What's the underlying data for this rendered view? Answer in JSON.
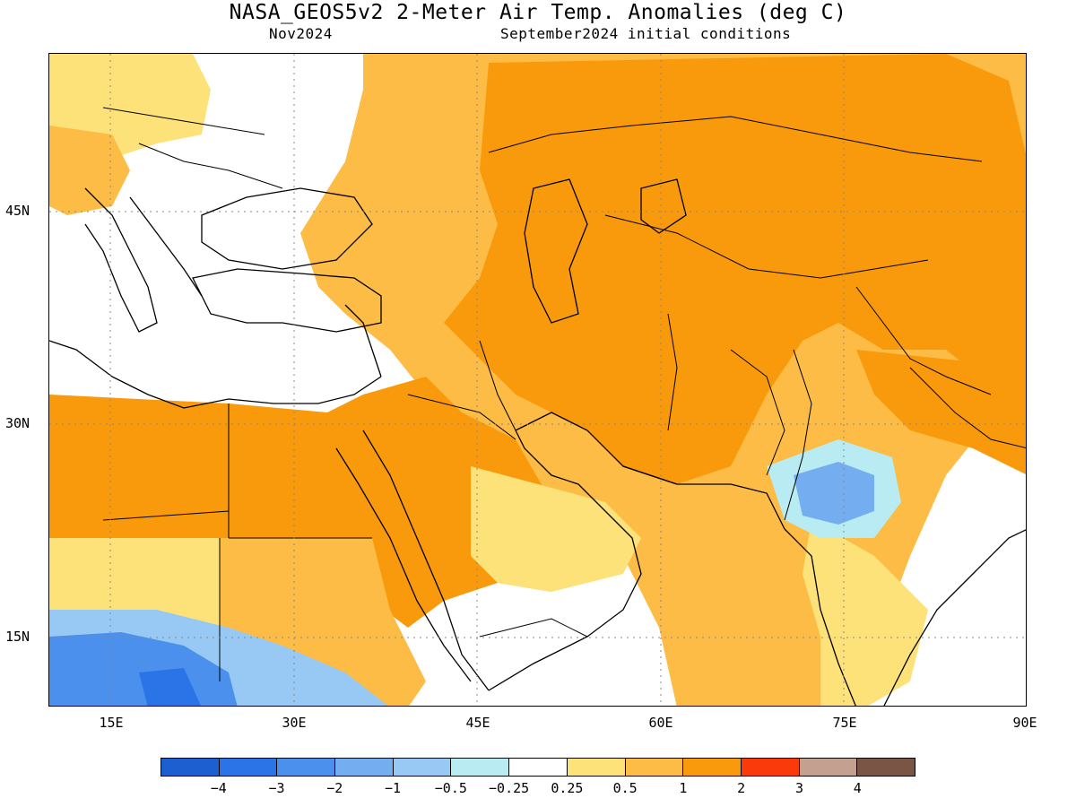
{
  "header": {
    "title": "NASA_GEOS5v2 2-Meter Air Temp. Anomalies (deg C)",
    "subtitle_left": "Nov2024",
    "subtitle_right": "September2024 initial conditions"
  },
  "map": {
    "projection": "equirectangular",
    "lon_range": [
      10,
      90
    ],
    "lat_range": [
      10,
      56
    ],
    "lat_ticks": [
      "45N",
      "30N",
      "15N"
    ],
    "lon_ticks": [
      "15E",
      "30E",
      "45E",
      "60E",
      "75E",
      "90E"
    ],
    "grid": "dotted"
  },
  "colorbar": {
    "colors": [
      "#1d5fd0",
      "#2b74e8",
      "#4a90ec",
      "#74aef0",
      "#98c8f4",
      "#b8ecf2",
      "#ffffff",
      "#fde27a",
      "#fcbc45",
      "#f99a0c",
      "#fa3a0a",
      "#c4a090",
      "#7a5444"
    ],
    "labels": [
      "−4",
      "−3",
      "−2",
      "−1",
      "−0.5",
      "−0.25",
      "0.25",
      "0.5",
      "1",
      "2",
      "3",
      "4"
    ]
  }
}
